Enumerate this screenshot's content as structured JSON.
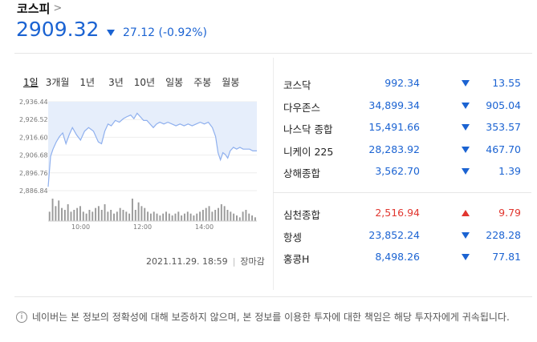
{
  "header": {
    "title": "코스피",
    "price": "2909.32",
    "change": "27.12",
    "change_pct": "(-0.92%)"
  },
  "tabs": [
    "1일",
    "3개월",
    "1년",
    "3년",
    "10년",
    "일봉",
    "주봉",
    "월봉"
  ],
  "timestamp": "2021.11.29. 18:59",
  "market_status": "장마감",
  "chart_data": {
    "type": "area",
    "y_ticks": [
      "2,936.44",
      "2,926.52",
      "2,916.60",
      "2,906.68",
      "2,896.76",
      "2,886.84"
    ],
    "ylim": [
      2886.84,
      2936.44
    ],
    "x_ticks": [
      "10:00",
      "12:00",
      "14:00"
    ],
    "price_series": [
      [
        0,
        2889
      ],
      [
        3,
        2906
      ],
      [
        6,
        2910
      ],
      [
        10,
        2914
      ],
      [
        14,
        2917
      ],
      [
        18,
        2919
      ],
      [
        22,
        2913
      ],
      [
        26,
        2918
      ],
      [
        30,
        2922
      ],
      [
        35,
        2918
      ],
      [
        40,
        2915
      ],
      [
        45,
        2920
      ],
      [
        50,
        2922
      ],
      [
        56,
        2920
      ],
      [
        62,
        2914
      ],
      [
        66,
        2913
      ],
      [
        70,
        2920
      ],
      [
        74,
        2924
      ],
      [
        78,
        2923
      ],
      [
        83,
        2926
      ],
      [
        88,
        2925
      ],
      [
        93,
        2927
      ],
      [
        97,
        2928
      ],
      [
        102,
        2929
      ],
      [
        106,
        2927
      ],
      [
        110,
        2930
      ],
      [
        114,
        2928
      ],
      [
        118,
        2926
      ],
      [
        122,
        2926
      ],
      [
        126,
        2924
      ],
      [
        130,
        2922
      ],
      [
        134,
        2924
      ],
      [
        138,
        2925
      ],
      [
        143,
        2924
      ],
      [
        148,
        2925
      ],
      [
        153,
        2924
      ],
      [
        158,
        2923
      ],
      [
        163,
        2924
      ],
      [
        168,
        2923
      ],
      [
        173,
        2924
      ],
      [
        178,
        2923
      ],
      [
        183,
        2924
      ],
      [
        188,
        2925
      ],
      [
        193,
        2924
      ],
      [
        198,
        2925
      ],
      [
        203,
        2922
      ],
      [
        207,
        2917
      ],
      [
        210,
        2908
      ],
      [
        213,
        2904
      ],
      [
        216,
        2908
      ],
      [
        219,
        2907
      ],
      [
        222,
        2905
      ],
      [
        225,
        2909
      ],
      [
        229,
        2911
      ],
      [
        233,
        2910
      ],
      [
        237,
        2911
      ],
      [
        241,
        2910
      ],
      [
        245,
        2910
      ],
      [
        249,
        2910
      ],
      [
        253,
        2909
      ],
      [
        258,
        2909
      ]
    ],
    "volume_series": [
      5,
      12,
      8,
      11,
      7,
      6,
      9,
      5,
      6,
      7,
      8,
      5,
      4,
      6,
      5,
      7,
      8,
      6,
      9,
      5,
      6,
      4,
      5,
      7,
      6,
      5,
      4,
      12,
      6,
      10,
      8,
      7,
      5,
      4,
      5,
      4,
      3,
      4,
      5,
      4,
      3,
      4,
      5,
      3,
      4,
      5,
      4,
      3,
      4,
      5,
      6,
      7,
      8,
      5,
      6,
      7,
      9,
      8,
      6,
      5,
      4,
      3,
      2,
      5,
      6,
      4,
      3,
      2
    ],
    "xlabel": "",
    "ylabel": "",
    "grid": true
  },
  "indices": [
    {
      "name": "코스닥",
      "value": "992.34",
      "change": "13.55",
      "dir": "down"
    },
    {
      "name": "다우존스",
      "value": "34,899.34",
      "change": "905.04",
      "dir": "down"
    },
    {
      "name": "나스닥 종합",
      "value": "15,491.66",
      "change": "353.57",
      "dir": "down"
    },
    {
      "name": "니케이 225",
      "value": "28,283.92",
      "change": "467.70",
      "dir": "down"
    },
    {
      "name": "상해종합",
      "value": "3,562.70",
      "change": "1.39",
      "dir": "down"
    }
  ],
  "indices2": [
    {
      "name": "심천종합",
      "value": "2,516.94",
      "change": "9.79",
      "dir": "up"
    },
    {
      "name": "항셍",
      "value": "23,852.24",
      "change": "228.28",
      "dir": "down"
    },
    {
      "name": "홍콩H",
      "value": "8,498.26",
      "change": "77.81",
      "dir": "down"
    }
  ],
  "disclaimer": "네이버는 본 정보의 정확성에 대해 보증하지 않으며, 본 정보를 이용한 투자에 대한 책임은 해당 투자자에게 귀속됩니다.",
  "colors": {
    "down": "#1b63d2",
    "up": "#e1362f",
    "chart_line": "#8fb0ee",
    "chart_fill": "#e6eefb"
  }
}
